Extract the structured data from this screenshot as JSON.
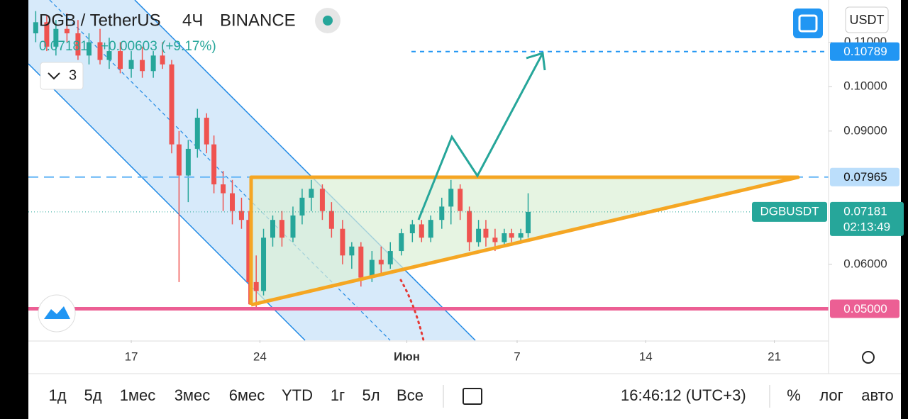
{
  "header": {
    "symbol": "DGB / TetherUS",
    "interval": "4Ч",
    "exchange": "BINANCE",
    "last": "0.07181",
    "change": "+0.00603 (+9.17%)",
    "indicators": "3",
    "currency": "USDT"
  },
  "chart_data": {
    "type": "candlestick",
    "xlim": [
      11.4,
      54.95
    ],
    "ylim": [
      0.0429,
      0.1195
    ],
    "xticks": [
      17,
      24,
      {
        "value": 32,
        "label": "Июн"
      },
      7.0,
      14.0,
      21.0
    ],
    "yticks": [
      {
        "value": 0.06,
        "label": "0.06000"
      },
      {
        "value": 0.09,
        "label": "0.09000"
      },
      {
        "value": 0.1,
        "label": "0.10000"
      },
      {
        "value": 0.11,
        "label": "0.11000"
      }
    ],
    "up_color": "#26a69a",
    "down_color": "#ef5350",
    "x": [
      11.8,
      12.4,
      12.9,
      13.5,
      14.1,
      14.7,
      15.3,
      15.8,
      16.4,
      17.0,
      17.6,
      18.2,
      18.7,
      19.2,
      19.6,
      20.1,
      20.6,
      21.1,
      21.5,
      22.0,
      22.5,
      23.0,
      23.4,
      23.8,
      24.2,
      24.7,
      25.2,
      25.8,
      26.3,
      26.8,
      27.4,
      27.9,
      28.5,
      29.0,
      29.5,
      30.1,
      30.6,
      31.1,
      31.7,
      32.3,
      32.8,
      33.3,
      33.9,
      34.4,
      34.9,
      35.4,
      35.9,
      36.3,
      36.8,
      37.3,
      37.7,
      38.2,
      38.6
    ],
    "open": [
      0.112,
      0.1145,
      0.109,
      0.113,
      0.112,
      0.107,
      0.11,
      0.106,
      0.108,
      0.104,
      0.106,
      0.1035,
      0.107,
      0.105,
      0.087,
      0.08,
      0.086,
      0.093,
      0.087,
      0.078,
      0.076,
      0.072,
      0.07,
      0.056,
      0.054,
      0.066,
      0.07,
      0.066,
      0.071,
      0.075,
      0.077,
      0.072,
      0.068,
      0.062,
      0.064,
      0.057,
      0.061,
      0.06,
      0.063,
      0.067,
      0.069,
      0.066,
      0.07,
      0.073,
      0.077,
      0.072,
      0.065,
      0.068,
      0.066,
      0.065,
      0.067,
      0.066,
      0.067
    ],
    "high": [
      0.117,
      0.116,
      0.115,
      0.1165,
      0.115,
      0.112,
      0.113,
      0.111,
      0.11,
      0.108,
      0.109,
      0.108,
      0.11,
      0.106,
      0.09,
      0.088,
      0.095,
      0.094,
      0.089,
      0.081,
      0.079,
      0.075,
      0.072,
      0.062,
      0.068,
      0.071,
      0.072,
      0.073,
      0.077,
      0.079,
      0.078,
      0.074,
      0.07,
      0.065,
      0.065,
      0.063,
      0.064,
      0.065,
      0.068,
      0.07,
      0.07,
      0.071,
      0.075,
      0.079,
      0.078,
      0.073,
      0.07,
      0.07,
      0.068,
      0.068,
      0.068,
      0.068,
      0.076
    ],
    "low": [
      0.11,
      0.108,
      0.107,
      0.11,
      0.106,
      0.105,
      0.105,
      0.104,
      0.103,
      0.102,
      0.102,
      0.102,
      0.104,
      0.085,
      0.056,
      0.074,
      0.084,
      0.085,
      0.076,
      0.072,
      0.069,
      0.068,
      0.051,
      0.05,
      0.053,
      0.064,
      0.064,
      0.065,
      0.069,
      0.072,
      0.07,
      0.066,
      0.06,
      0.059,
      0.055,
      0.056,
      0.058,
      0.059,
      0.062,
      0.065,
      0.065,
      0.065,
      0.068,
      0.069,
      0.07,
      0.063,
      0.064,
      0.064,
      0.063,
      0.064,
      0.065,
      0.065,
      0.066
    ],
    "close": [
      0.1145,
      0.109,
      0.113,
      0.112,
      0.107,
      0.11,
      0.106,
      0.108,
      0.104,
      0.106,
      0.1035,
      0.107,
      0.105,
      0.087,
      0.08,
      0.086,
      0.093,
      0.087,
      0.078,
      0.076,
      0.072,
      0.07,
      0.056,
      0.054,
      0.066,
      0.07,
      0.066,
      0.071,
      0.075,
      0.077,
      0.072,
      0.068,
      0.062,
      0.064,
      0.057,
      0.061,
      0.06,
      0.063,
      0.067,
      0.069,
      0.066,
      0.07,
      0.073,
      0.077,
      0.072,
      0.065,
      0.068,
      0.066,
      0.065,
      0.067,
      0.066,
      0.067,
      0.07181
    ],
    "levels": [
      {
        "value": 0.10789,
        "label": "0.10789",
        "color": "#2196f3",
        "text_color": "#ffffff",
        "style": "dashed"
      },
      {
        "value": 0.07965,
        "label": "0.07965",
        "color": "#64b5f6",
        "box_color": "#bbdefb",
        "text_color": "#111111",
        "style": "dashed"
      },
      {
        "value": 0.05,
        "label": "0.05000",
        "color": "#ec5f94",
        "text_color": "#ffffff",
        "style": "solid"
      }
    ],
    "last_price": {
      "value": 0.07181,
      "label": "0.07181",
      "symbol": "DGBUSDT",
      "countdown": "02:13:49",
      "color": "#26a69a"
    }
  },
  "toolbar": {
    "ranges": [
      "1д",
      "5д",
      "1мес",
      "3мес",
      "6мес",
      "YTD",
      "1г",
      "5л",
      "Все"
    ],
    "time": "16:46:12 (UTC+3)",
    "percent": "%",
    "log": "лог",
    "auto": "авто"
  }
}
